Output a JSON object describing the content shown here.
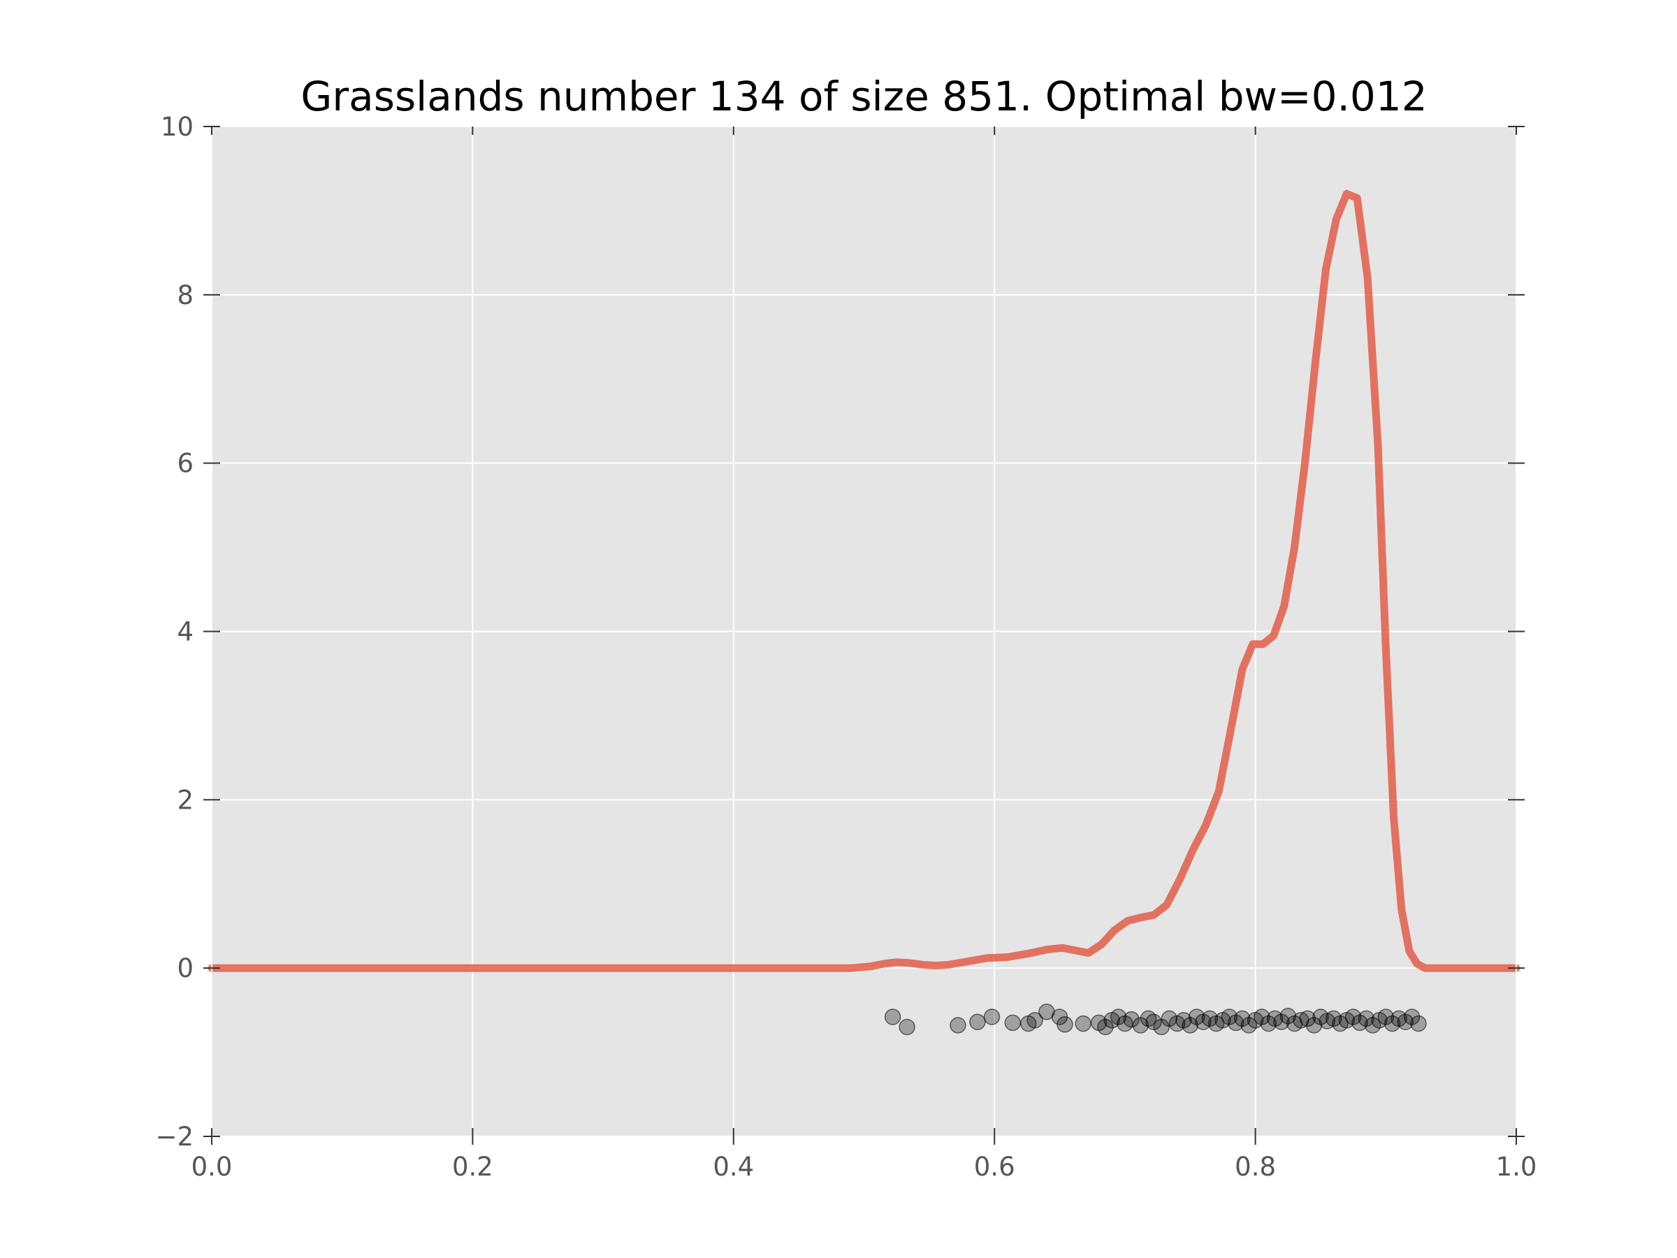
{
  "chart_data": {
    "type": "line",
    "title": "Grasslands number 134 of size 851. Optimal bw=0.012",
    "xlabel": "",
    "ylabel": "",
    "xlim": [
      0.0,
      1.0
    ],
    "ylim": [
      -2,
      10
    ],
    "grid": true,
    "x_ticks": [
      0.0,
      0.2,
      0.4,
      0.6,
      0.8,
      1.0
    ],
    "x_tick_labels": [
      "0.0",
      "0.2",
      "0.4",
      "0.6",
      "0.8",
      "1.0"
    ],
    "y_ticks": [
      -2,
      0,
      2,
      4,
      6,
      8,
      10
    ],
    "y_tick_labels": [
      "−2",
      "0",
      "2",
      "4",
      "6",
      "8",
      "10"
    ],
    "colors": {
      "background": "#e5e5e5",
      "grid": "#ffffff",
      "line": "#e24a33",
      "points": "#000000"
    },
    "series": [
      {
        "type": "line",
        "x": [
          0.0,
          0.1,
          0.2,
          0.3,
          0.4,
          0.45,
          0.49,
          0.505,
          0.515,
          0.525,
          0.535,
          0.545,
          0.555,
          0.565,
          0.58,
          0.595,
          0.61,
          0.625,
          0.64,
          0.652,
          0.662,
          0.672,
          0.682,
          0.692,
          0.702,
          0.712,
          0.722,
          0.732,
          0.742,
          0.752,
          0.762,
          0.772,
          0.782,
          0.79,
          0.798,
          0.806,
          0.814,
          0.822,
          0.83,
          0.838,
          0.846,
          0.854,
          0.862,
          0.87,
          0.878,
          0.886,
          0.894,
          0.9,
          0.906,
          0.912,
          0.918,
          0.924,
          0.93,
          0.936,
          0.942,
          0.948,
          0.954,
          0.96,
          0.97,
          0.98,
          1.0
        ],
        "y": [
          0.0,
          0.0,
          0.0,
          0.0,
          0.0,
          0.0,
          0.0,
          0.02,
          0.05,
          0.07,
          0.06,
          0.04,
          0.03,
          0.04,
          0.08,
          0.12,
          0.13,
          0.17,
          0.22,
          0.24,
          0.21,
          0.18,
          0.28,
          0.45,
          0.56,
          0.6,
          0.63,
          0.75,
          1.05,
          1.4,
          1.7,
          2.1,
          2.9,
          3.55,
          3.85,
          3.85,
          3.95,
          4.3,
          5.0,
          6.0,
          7.2,
          8.3,
          8.9,
          9.2,
          9.15,
          8.2,
          6.2,
          3.8,
          1.8,
          0.7,
          0.2,
          0.05,
          0.0,
          0.0,
          0.0,
          0.0,
          0.0,
          0.0,
          0.0,
          0.0,
          0.0
        ]
      },
      {
        "type": "scatter",
        "x": [
          0.522,
          0.533,
          0.572,
          0.587,
          0.598,
          0.614,
          0.626,
          0.631,
          0.64,
          0.65,
          0.654,
          0.668,
          0.68,
          0.685,
          0.69,
          0.695,
          0.7,
          0.705,
          0.712,
          0.718,
          0.722,
          0.728,
          0.734,
          0.74,
          0.745,
          0.75,
          0.755,
          0.76,
          0.765,
          0.77,
          0.775,
          0.78,
          0.785,
          0.79,
          0.795,
          0.8,
          0.805,
          0.81,
          0.815,
          0.82,
          0.825,
          0.83,
          0.835,
          0.84,
          0.845,
          0.85,
          0.855,
          0.86,
          0.865,
          0.87,
          0.875,
          0.88,
          0.885,
          0.89,
          0.895,
          0.9,
          0.905,
          0.91,
          0.915,
          0.92,
          0.925
        ],
        "y": [
          -0.58,
          -0.7,
          -0.68,
          -0.64,
          -0.58,
          -0.65,
          -0.66,
          -0.62,
          -0.52,
          -0.58,
          -0.67,
          -0.66,
          -0.65,
          -0.7,
          -0.62,
          -0.58,
          -0.66,
          -0.61,
          -0.68,
          -0.6,
          -0.64,
          -0.7,
          -0.6,
          -0.66,
          -0.62,
          -0.68,
          -0.58,
          -0.64,
          -0.6,
          -0.66,
          -0.62,
          -0.58,
          -0.65,
          -0.6,
          -0.68,
          -0.62,
          -0.58,
          -0.66,
          -0.6,
          -0.64,
          -0.57,
          -0.66,
          -0.62,
          -0.6,
          -0.68,
          -0.58,
          -0.63,
          -0.6,
          -0.66,
          -0.62,
          -0.58,
          -0.65,
          -0.6,
          -0.68,
          -0.62,
          -0.58,
          -0.66,
          -0.6,
          -0.64,
          -0.58,
          -0.66
        ]
      }
    ]
  }
}
